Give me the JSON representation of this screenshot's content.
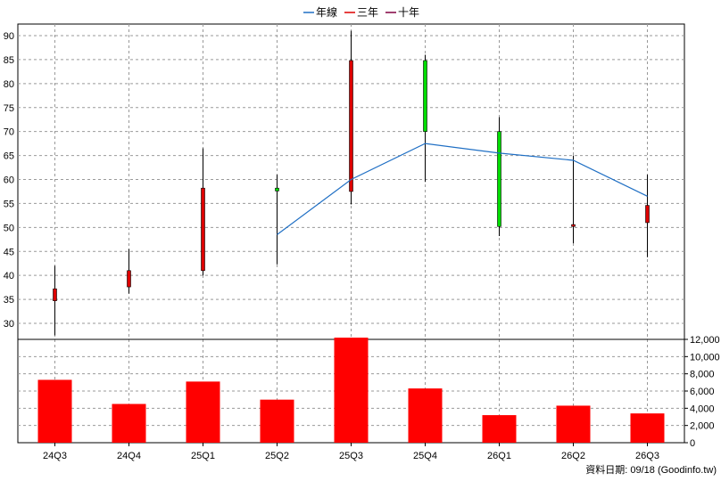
{
  "legend": [
    {
      "label": "年線",
      "color": "#1f6fc4"
    },
    {
      "label": "三年",
      "color": "#dd0000"
    },
    {
      "label": "十年",
      "color": "#800040"
    }
  ],
  "footer": "資料日期: 09/18  (Goodinfo.tw)",
  "colors": {
    "up": "#00dd00",
    "down": "#dd0000",
    "volume": "#ff0000",
    "line": "#1f6fc4",
    "grid": "#999999"
  },
  "chart_data": {
    "type": "candlestick+bar",
    "categories": [
      "24Q3",
      "24Q4",
      "25Q1",
      "25Q2",
      "25Q3",
      "25Q4",
      "26Q1",
      "26Q2",
      "26Q3"
    ],
    "price_axis": {
      "min": 25,
      "max": 92,
      "ticks": [
        30,
        35,
        40,
        45,
        50,
        55,
        60,
        65,
        70,
        75,
        80,
        85,
        90
      ]
    },
    "volume_axis": {
      "min": 0,
      "max": 12000,
      "ticks": [
        0,
        2000,
        4000,
        6000,
        8000,
        10000,
        12000
      ],
      "tick_labels": [
        "0",
        "2,000",
        "4,000",
        "6,000",
        "8,000",
        "10,000",
        "12,000"
      ]
    },
    "candles": [
      {
        "open": 34.7,
        "close": 37.2,
        "high": 42.0,
        "low": 27.5
      },
      {
        "open": 37.6,
        "close": 41.0,
        "high": 45.5,
        "low": 36.2
      },
      {
        "open": 41.0,
        "close": 58.2,
        "high": 66.5,
        "low": 40.0
      },
      {
        "open": 58.2,
        "close": 57.6,
        "high": 61.0,
        "low": 42.3
      },
      {
        "open": 57.5,
        "close": 84.8,
        "high": 91.0,
        "low": 54.8
      },
      {
        "open": 84.8,
        "close": 70.0,
        "high": 86.0,
        "low": 59.5
      },
      {
        "open": 70.0,
        "close": 50.2,
        "high": 73.0,
        "low": 48.2
      },
      {
        "open": 50.2,
        "close": 50.6,
        "high": 65.0,
        "low": 46.7
      },
      {
        "open": 51.0,
        "close": 54.6,
        "high": 61.0,
        "low": 43.8
      }
    ],
    "series": [
      {
        "name": "年線",
        "values": [
          null,
          null,
          null,
          48.5,
          60.0,
          67.5,
          65.5,
          64.0,
          56.5
        ]
      },
      {
        "name": "三年",
        "values": [
          null,
          null,
          null,
          null,
          null,
          null,
          null,
          null,
          null
        ]
      },
      {
        "name": "十年",
        "values": [
          null,
          null,
          null,
          null,
          null,
          null,
          null,
          null,
          null
        ]
      }
    ],
    "volume": [
      7300,
      4500,
      7100,
      5000,
      12200,
      6300,
      3200,
      4300,
      3400
    ],
    "grid": true,
    "legend_position": "top-center"
  }
}
